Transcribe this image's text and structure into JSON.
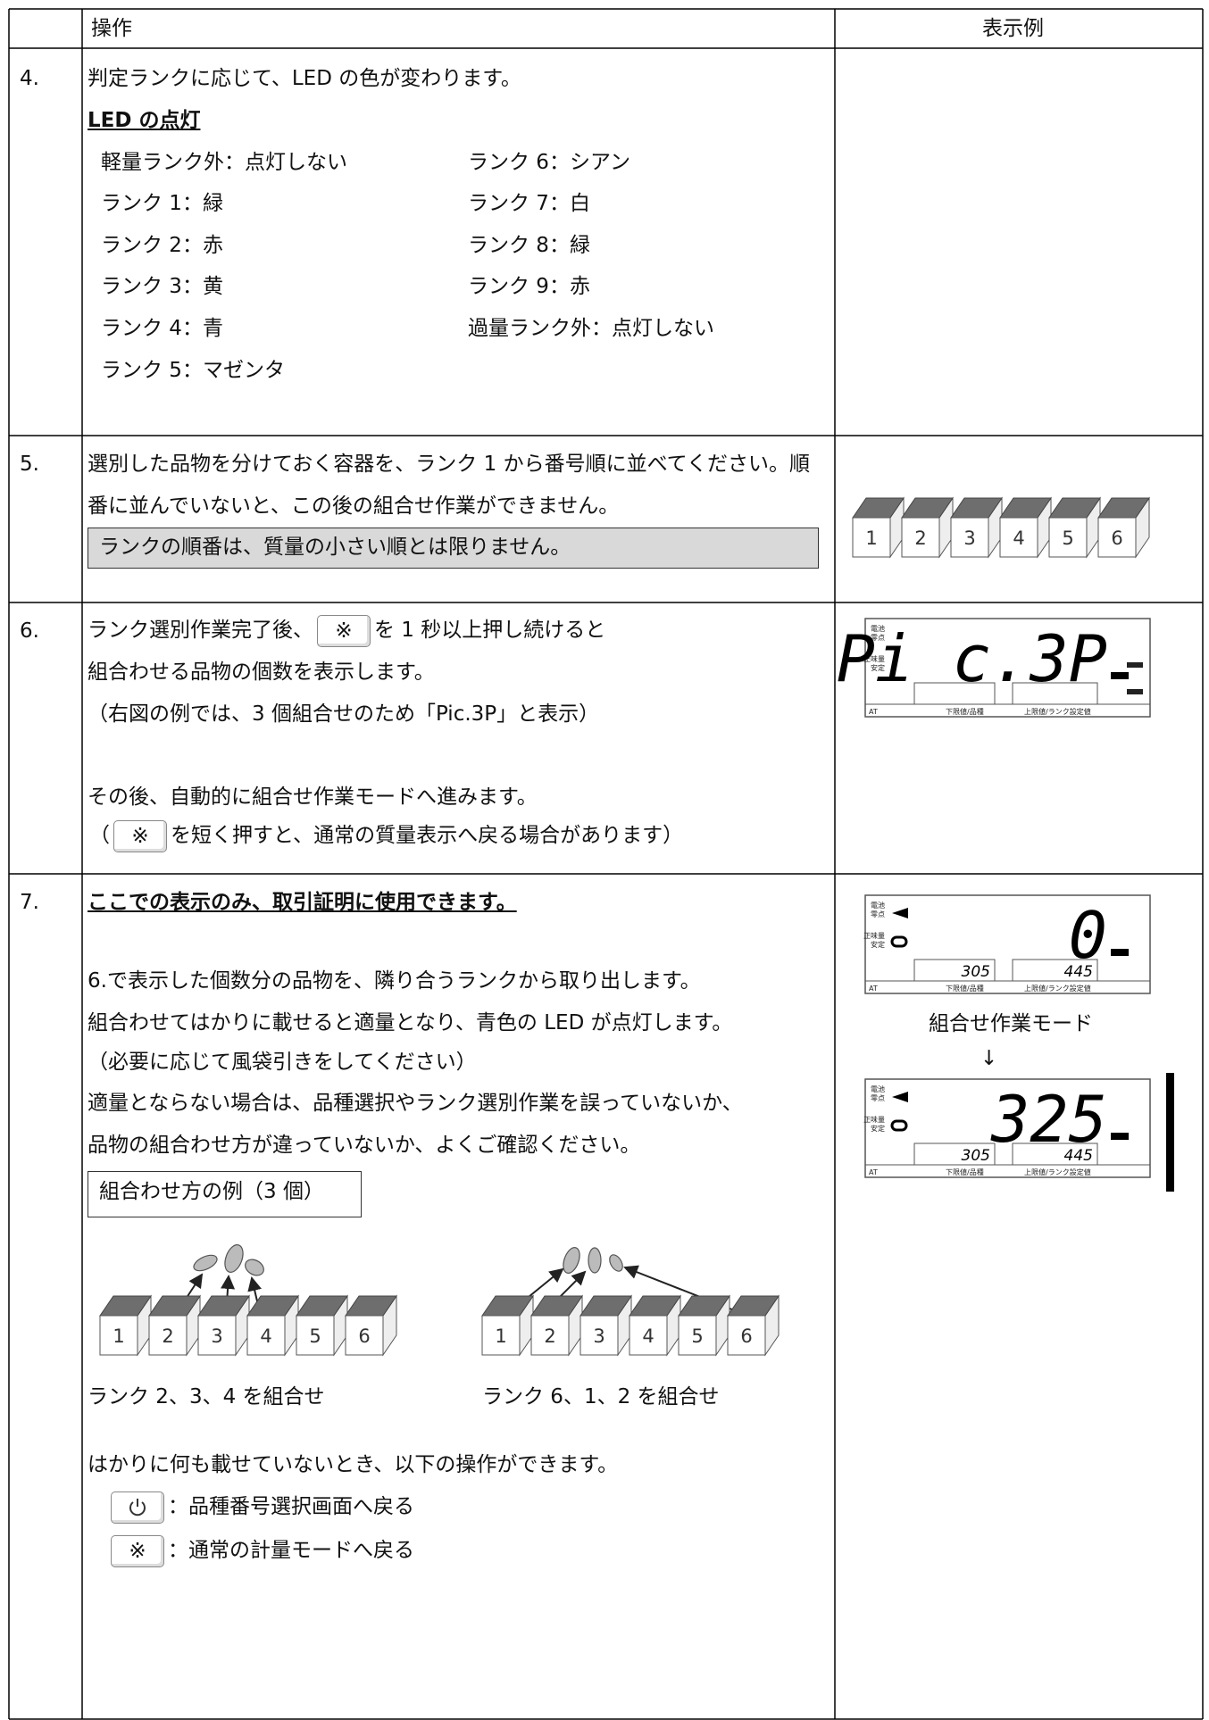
{
  "header": {
    "operation": "操作",
    "example": "表示例"
  },
  "button_symbol": "※",
  "lcd_labels": {
    "battery": "電池",
    "zero": "零点",
    "net": "正味量",
    "stable": "安定",
    "at": "AT",
    "lower": "下限値/品種",
    "upper": "上限値/ランク設定値"
  },
  "rows": [
    {
      "number": "4.",
      "intro": "判定ランクに応じて、LED の色が変わります。",
      "heading": "LED の点灯",
      "led_left": [
        "軽量ランク外：点灯しない",
        "ランク 1：緑",
        "ランク 2：赤",
        "ランク 3：黄",
        "ランク 4：青",
        "ランク 5：マゼンタ"
      ],
      "led_right": [
        "ランク 6：シアン",
        "ランク 7：白",
        "ランク 8：緑",
        "ランク 9：赤",
        "過量ランク外：点灯しない"
      ]
    },
    {
      "number": "5.",
      "lines": [
        "選別した品物を分けておく容器を、ランク 1 から番号順に並べてください。順",
        "番に並んでいないと、この後の組合せ作業ができません。"
      ],
      "note": "ランクの順番は、質量の小さい順とは限りません。",
      "containers": [
        "1",
        "2",
        "3",
        "4",
        "5",
        "6"
      ]
    },
    {
      "number": "6.",
      "line1_before": "ランク選別作業完了後、",
      "line1_after": "を 1 秒以上押し続けると",
      "lines": [
        "組合わせる品物の個数を表示します。",
        "（右図の例では、3 個組合せのため「Pic.3P」と表示）",
        "その後、自動的に組合せ作業モードへ進みます。"
      ],
      "last_before": "（",
      "last_after": "を短く押すと、通常の質量表示へ戻る場合があります）",
      "display": "Pi c.3P"
    },
    {
      "number": "7.",
      "heading": "ここでの表示のみ、取引証明に使用できます。",
      "lines": [
        "6.で表示した個数分の品物を、隣り合うランクから取り出します。",
        "組合わせてはかりに載せると適量となり、青色の LED が点灯します。",
        "（必要に応じて風袋引きをしてください）",
        "適量とならない場合は、品種選択やランク選別作業を誤っていないか、",
        "品物の組合わせ方が違っていないか、よくご確認ください。"
      ],
      "example_label": "組合わせ方の例（3 個）",
      "examples": [
        {
          "containers": [
            "1",
            "2",
            "3",
            "4",
            "5",
            "6"
          ],
          "caption": "ランク 2、3、4 を組合せ"
        },
        {
          "containers": [
            "1",
            "2",
            "3",
            "4",
            "5",
            "6"
          ],
          "caption": "ランク 6、1、2 を組合せ"
        }
      ],
      "idle_note": "はかりに何も載せていないとき、以下の操作ができます。",
      "power_action": "：品種番号選択画面へ戻る",
      "star_action": "：通常の計量モードへ戻る",
      "mode_label": "組合せ作業モード",
      "arrow": "↓",
      "display_before": {
        "main": "0",
        "lower": "305",
        "upper": "445"
      },
      "display_after": {
        "main": "325",
        "lower": "305",
        "upper": "445"
      }
    }
  ]
}
